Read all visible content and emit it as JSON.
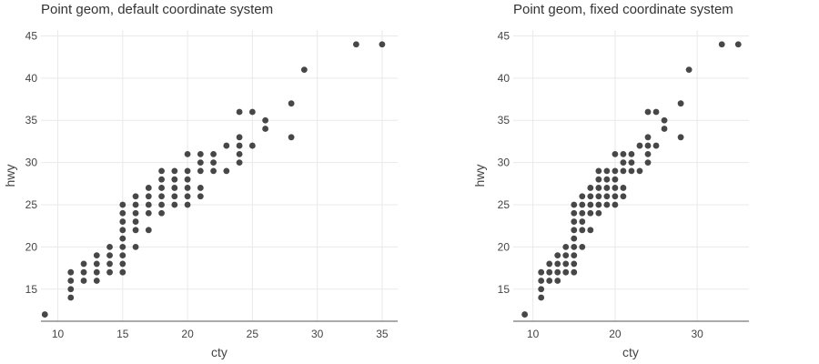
{
  "chart_data": [
    {
      "type": "scatter",
      "title": "Point geom, default coordinate system",
      "xlabel": "cty",
      "ylabel": "hwy",
      "xlim": [
        8.7,
        36.2
      ],
      "ylim": [
        11.2,
        45.7
      ],
      "xticks": [
        10,
        15,
        20,
        25,
        30,
        35
      ],
      "yticks": [
        15,
        20,
        25,
        30,
        35,
        40,
        45
      ],
      "grid": true,
      "points": [
        [
          9,
          12
        ],
        [
          11,
          14
        ],
        [
          11,
          15
        ],
        [
          11,
          16
        ],
        [
          11,
          17
        ],
        [
          12,
          16
        ],
        [
          12,
          17
        ],
        [
          12,
          18
        ],
        [
          13,
          16
        ],
        [
          13,
          17
        ],
        [
          13,
          18
        ],
        [
          13,
          19
        ],
        [
          14,
          17
        ],
        [
          14,
          18
        ],
        [
          14,
          19
        ],
        [
          14,
          20
        ],
        [
          15,
          17
        ],
        [
          15,
          18
        ],
        [
          15,
          19
        ],
        [
          15,
          20
        ],
        [
          15,
          21
        ],
        [
          15,
          22
        ],
        [
          15,
          23
        ],
        [
          15,
          24
        ],
        [
          15,
          25
        ],
        [
          16,
          20
        ],
        [
          16,
          22
        ],
        [
          16,
          23
        ],
        [
          16,
          24
        ],
        [
          16,
          25
        ],
        [
          16,
          26
        ],
        [
          17,
          22
        ],
        [
          17,
          24
        ],
        [
          17,
          25
        ],
        [
          17,
          26
        ],
        [
          17,
          27
        ],
        [
          18,
          24
        ],
        [
          18,
          25
        ],
        [
          18,
          26
        ],
        [
          18,
          27
        ],
        [
          18,
          28
        ],
        [
          18,
          29
        ],
        [
          19,
          25
        ],
        [
          19,
          26
        ],
        [
          19,
          27
        ],
        [
          19,
          28
        ],
        [
          19,
          29
        ],
        [
          20,
          25
        ],
        [
          20,
          26
        ],
        [
          20,
          27
        ],
        [
          20,
          28
        ],
        [
          20,
          29
        ],
        [
          20,
          31
        ],
        [
          21,
          26
        ],
        [
          21,
          27
        ],
        [
          21,
          29
        ],
        [
          21,
          30
        ],
        [
          21,
          31
        ],
        [
          22,
          29
        ],
        [
          22,
          30
        ],
        [
          22,
          31
        ],
        [
          23,
          29
        ],
        [
          23,
          32
        ],
        [
          24,
          30
        ],
        [
          24,
          31
        ],
        [
          24,
          32
        ],
        [
          24,
          33
        ],
        [
          24,
          36
        ],
        [
          25,
          32
        ],
        [
          25,
          36
        ],
        [
          26,
          34
        ],
        [
          26,
          35
        ],
        [
          28,
          33
        ],
        [
          28,
          37
        ],
        [
          29,
          41
        ],
        [
          33,
          44
        ],
        [
          35,
          44
        ]
      ]
    },
    {
      "type": "scatter",
      "title": "Point geom, fixed coordinate system",
      "xlabel": "cty",
      "ylabel": "hwy",
      "xlim": [
        7.6,
        36.3
      ],
      "ylim": [
        11.2,
        45.7
      ],
      "xticks": [
        10,
        20,
        30
      ],
      "yticks": [
        15,
        20,
        25,
        30,
        35,
        40,
        45
      ],
      "grid": true,
      "points": [
        [
          9,
          12
        ],
        [
          11,
          14
        ],
        [
          11,
          15
        ],
        [
          11,
          16
        ],
        [
          11,
          17
        ],
        [
          12,
          16
        ],
        [
          12,
          17
        ],
        [
          12,
          18
        ],
        [
          13,
          16
        ],
        [
          13,
          17
        ],
        [
          13,
          18
        ],
        [
          13,
          19
        ],
        [
          14,
          17
        ],
        [
          14,
          18
        ],
        [
          14,
          19
        ],
        [
          14,
          20
        ],
        [
          15,
          17
        ],
        [
          15,
          18
        ],
        [
          15,
          19
        ],
        [
          15,
          20
        ],
        [
          15,
          21
        ],
        [
          15,
          22
        ],
        [
          15,
          23
        ],
        [
          15,
          24
        ],
        [
          15,
          25
        ],
        [
          16,
          20
        ],
        [
          16,
          22
        ],
        [
          16,
          23
        ],
        [
          16,
          24
        ],
        [
          16,
          25
        ],
        [
          16,
          26
        ],
        [
          17,
          22
        ],
        [
          17,
          24
        ],
        [
          17,
          25
        ],
        [
          17,
          26
        ],
        [
          17,
          27
        ],
        [
          18,
          24
        ],
        [
          18,
          25
        ],
        [
          18,
          26
        ],
        [
          18,
          27
        ],
        [
          18,
          28
        ],
        [
          18,
          29
        ],
        [
          19,
          25
        ],
        [
          19,
          26
        ],
        [
          19,
          27
        ],
        [
          19,
          28
        ],
        [
          19,
          29
        ],
        [
          20,
          25
        ],
        [
          20,
          26
        ],
        [
          20,
          27
        ],
        [
          20,
          28
        ],
        [
          20,
          29
        ],
        [
          20,
          31
        ],
        [
          21,
          26
        ],
        [
          21,
          27
        ],
        [
          21,
          29
        ],
        [
          21,
          30
        ],
        [
          21,
          31
        ],
        [
          22,
          29
        ],
        [
          22,
          30
        ],
        [
          22,
          31
        ],
        [
          23,
          29
        ],
        [
          23,
          32
        ],
        [
          24,
          30
        ],
        [
          24,
          31
        ],
        [
          24,
          32
        ],
        [
          24,
          33
        ],
        [
          24,
          36
        ],
        [
          25,
          32
        ],
        [
          25,
          36
        ],
        [
          26,
          34
        ],
        [
          26,
          35
        ],
        [
          28,
          33
        ],
        [
          28,
          37
        ],
        [
          29,
          41
        ],
        [
          33,
          44
        ],
        [
          35,
          44
        ]
      ]
    }
  ]
}
